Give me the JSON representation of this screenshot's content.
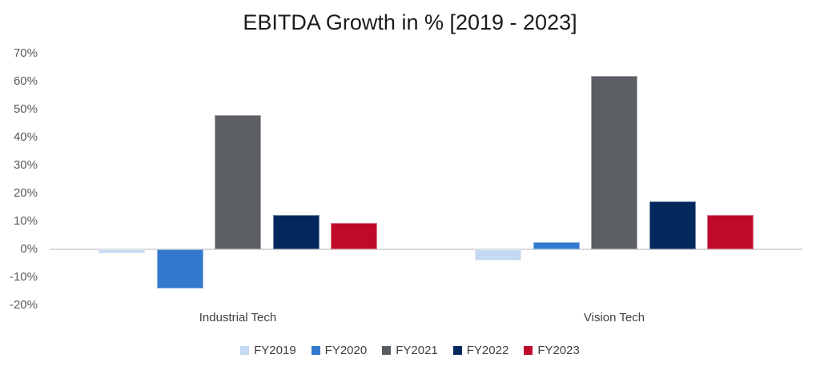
{
  "chart_data": {
    "type": "bar",
    "title": "EBITDA Growth in % [2019 - 2023]",
    "unit": "%",
    "categories": [
      "Industrial Tech",
      "Vision Tech"
    ],
    "series": [
      {
        "name": "FY2019",
        "color": "#C5D9F1",
        "values": [
          -1.5,
          -4.0
        ]
      },
      {
        "name": "FY2020",
        "color": "#3379CE",
        "values": [
          -14.0,
          2.7
        ]
      },
      {
        "name": "FY2021",
        "color": "#5B5E63",
        "values": [
          48.0,
          62.0
        ]
      },
      {
        "name": "FY2022",
        "color": "#03285D",
        "values": [
          12.2,
          17.2
        ]
      },
      {
        "name": "FY2023",
        "color": "#C00A2B",
        "values": [
          9.4,
          12.3
        ]
      }
    ],
    "ylim": [
      -20,
      70
    ],
    "ytick_step": 10,
    "ytick_labels": [
      "70%",
      "60%",
      "50%",
      "40%",
      "30%",
      "20%",
      "10%",
      "0%",
      "-10%",
      "-20%"
    ],
    "grid": false,
    "legend_position": "bottom",
    "axis_line_color": "#D9D9D9",
    "title_color": "#1A1A1A",
    "tick_label_color": "#595959",
    "category_label_color": "#404040"
  }
}
